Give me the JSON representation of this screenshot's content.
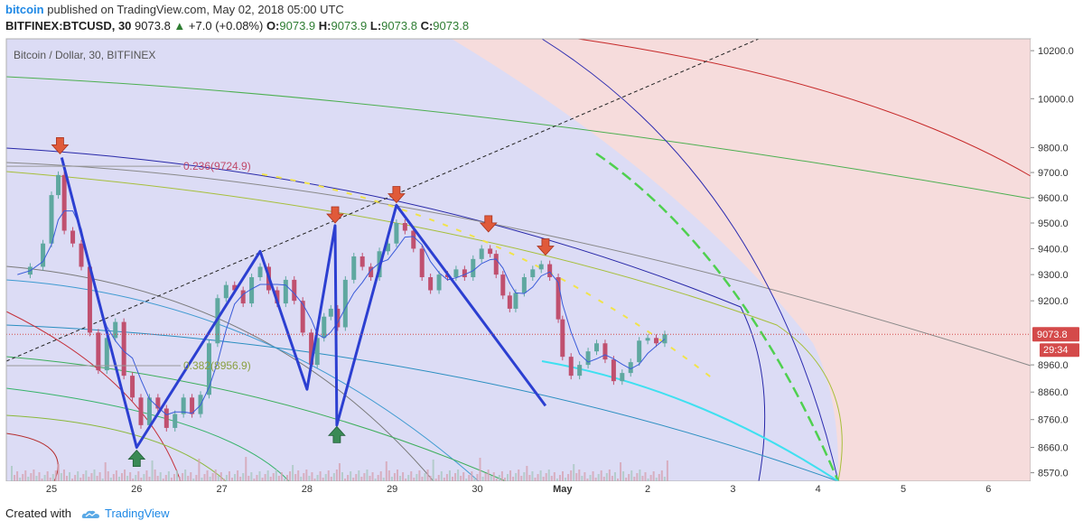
{
  "header": {
    "publisher": "bitcoin",
    "published_text": "published on TradingView.com, May 02, 2018 05:00 UTC",
    "symbol": "BITFINEX:BTCUSD, 30",
    "last": "9073.8",
    "change": "+7.0 (+0.08%)",
    "o_label": "O:",
    "o_val": "9073.9",
    "h_label": "H:",
    "h_val": "9073.9",
    "l_label": "L:",
    "l_val": "9073.8",
    "c_label": "C:",
    "c_val": "9073.8"
  },
  "footer": {
    "created_with": "Created with",
    "brand": "TradingView"
  },
  "chart_data": {
    "type": "line",
    "title": "Bitcoin / Dollar, 30, BITFINEX",
    "x_ticks": [
      "25",
      "26",
      "27",
      "28",
      "29",
      "30",
      "May",
      "2",
      "3",
      "4",
      "5",
      "6"
    ],
    "y_ticks": [
      "10200.0",
      "10000.0",
      "9800.0",
      "9700.0",
      "9600.0",
      "9500.0",
      "9400.0",
      "9300.0",
      "9200.0",
      "8960.0",
      "8860.0",
      "8760.0",
      "8660.0",
      "8570.0"
    ],
    "y_scale": "log",
    "ylim": [
      8540,
      10240
    ],
    "xlim": [
      24.55,
      31.0
    ],
    "last_price_label": "9073.8",
    "countdown_label": "29:34",
    "fib_labels": [
      {
        "text": "0.236(9724.9)",
        "price": 9724.9
      },
      {
        "text": "0.382(8956.9)",
        "price": 8956.9
      }
    ],
    "zigzag": [
      {
        "x": 25.12,
        "y": 9760
      },
      {
        "x": 26.0,
        "y": 8660
      },
      {
        "x": 27.45,
        "y": 9390
      },
      {
        "x": 28.0,
        "y": 8870
      },
      {
        "x": 28.33,
        "y": 9490
      },
      {
        "x": 28.35,
        "y": 8740
      },
      {
        "x": 29.05,
        "y": 9570
      },
      {
        "x": 30.8,
        "y": 8810
      }
    ],
    "sell_arrows": [
      {
        "x": 25.1,
        "y": 9775
      },
      {
        "x": 28.33,
        "y": 9500
      },
      {
        "x": 29.05,
        "y": 9580
      },
      {
        "x": 30.13,
        "y": 9465
      },
      {
        "x": 30.8,
        "y": 9375
      }
    ],
    "buy_arrows": [
      {
        "x": 26.0,
        "y": 8650
      },
      {
        "x": 28.35,
        "y": 8735
      }
    ],
    "price_path": [
      {
        "x": 24.6,
        "y": 9300
      },
      {
        "x": 24.75,
        "y": 9330
      },
      {
        "x": 24.9,
        "y": 9420
      },
      {
        "x": 25.0,
        "y": 9610
      },
      {
        "x": 25.08,
        "y": 9690
      },
      {
        "x": 25.15,
        "y": 9470
      },
      {
        "x": 25.25,
        "y": 9420
      },
      {
        "x": 25.35,
        "y": 9330
      },
      {
        "x": 25.45,
        "y": 9080
      },
      {
        "x": 25.55,
        "y": 8940
      },
      {
        "x": 25.65,
        "y": 9060
      },
      {
        "x": 25.75,
        "y": 9120
      },
      {
        "x": 25.85,
        "y": 8920
      },
      {
        "x": 25.95,
        "y": 8840
      },
      {
        "x": 26.05,
        "y": 8740
      },
      {
        "x": 26.15,
        "y": 8840
      },
      {
        "x": 26.25,
        "y": 8800
      },
      {
        "x": 26.35,
        "y": 8730
      },
      {
        "x": 26.45,
        "y": 8780
      },
      {
        "x": 26.55,
        "y": 8840
      },
      {
        "x": 26.65,
        "y": 8780
      },
      {
        "x": 26.75,
        "y": 8850
      },
      {
        "x": 26.85,
        "y": 9040
      },
      {
        "x": 26.95,
        "y": 9210
      },
      {
        "x": 27.05,
        "y": 9260
      },
      {
        "x": 27.15,
        "y": 9240
      },
      {
        "x": 27.25,
        "y": 9190
      },
      {
        "x": 27.35,
        "y": 9290
      },
      {
        "x": 27.45,
        "y": 9330
      },
      {
        "x": 27.55,
        "y": 9240
      },
      {
        "x": 27.65,
        "y": 9190
      },
      {
        "x": 27.75,
        "y": 9280
      },
      {
        "x": 27.85,
        "y": 9200
      },
      {
        "x": 27.95,
        "y": 9080
      },
      {
        "x": 28.05,
        "y": 8960
      },
      {
        "x": 28.12,
        "y": 9060
      },
      {
        "x": 28.2,
        "y": 9140
      },
      {
        "x": 28.28,
        "y": 9170
      },
      {
        "x": 28.36,
        "y": 9100
      },
      {
        "x": 28.45,
        "y": 9280
      },
      {
        "x": 28.55,
        "y": 9370
      },
      {
        "x": 28.65,
        "y": 9330
      },
      {
        "x": 28.75,
        "y": 9290
      },
      {
        "x": 28.85,
        "y": 9390
      },
      {
        "x": 28.95,
        "y": 9420
      },
      {
        "x": 29.05,
        "y": 9500
      },
      {
        "x": 29.15,
        "y": 9470
      },
      {
        "x": 29.25,
        "y": 9400
      },
      {
        "x": 29.35,
        "y": 9290
      },
      {
        "x": 29.45,
        "y": 9240
      },
      {
        "x": 29.55,
        "y": 9300
      },
      {
        "x": 29.65,
        "y": 9290
      },
      {
        "x": 29.75,
        "y": 9320
      },
      {
        "x": 29.85,
        "y": 9290
      },
      {
        "x": 29.95,
        "y": 9360
      },
      {
        "x": 30.05,
        "y": 9400
      },
      {
        "x": 30.15,
        "y": 9380
      },
      {
        "x": 30.22,
        "y": 9300
      },
      {
        "x": 30.3,
        "y": 9220
      },
      {
        "x": 30.38,
        "y": 9170
      },
      {
        "x": 30.45,
        "y": 9230
      },
      {
        "x": 30.55,
        "y": 9290
      },
      {
        "x": 30.65,
        "y": 9320
      },
      {
        "x": 30.75,
        "y": 9340
      },
      {
        "x": 30.85,
        "y": 9290
      },
      {
        "x": 30.95,
        "y": 9130
      },
      {
        "x": 31.0,
        "y": 8990
      },
      {
        "x": 31.1,
        "y": 8920
      },
      {
        "x": 31.2,
        "y": 8960
      },
      {
        "x": 31.3,
        "y": 9010
      },
      {
        "x": 31.4,
        "y": 9040
      },
      {
        "x": 31.5,
        "y": 8980
      },
      {
        "x": 31.6,
        "y": 8900
      },
      {
        "x": 31.7,
        "y": 8930
      },
      {
        "x": 31.8,
        "y": 8970
      },
      {
        "x": 31.9,
        "y": 9050
      },
      {
        "x": 32.0,
        "y": 9060
      },
      {
        "x": 32.1,
        "y": 9040
      },
      {
        "x": 32.2,
        "y": 9073.8
      }
    ]
  },
  "colors": {
    "bg_blue": "#dcdcf5",
    "bg_pink": "#f6dcdc",
    "zigzag": "#2c3fd1",
    "up_candle": "#5fa8a0",
    "down_candle": "#c0506f",
    "sell_arrow": "#e05a3a",
    "buy_arrow": "#3a8a55",
    "price_line": "#d44a4a",
    "fib_text": "#c04a6a"
  }
}
